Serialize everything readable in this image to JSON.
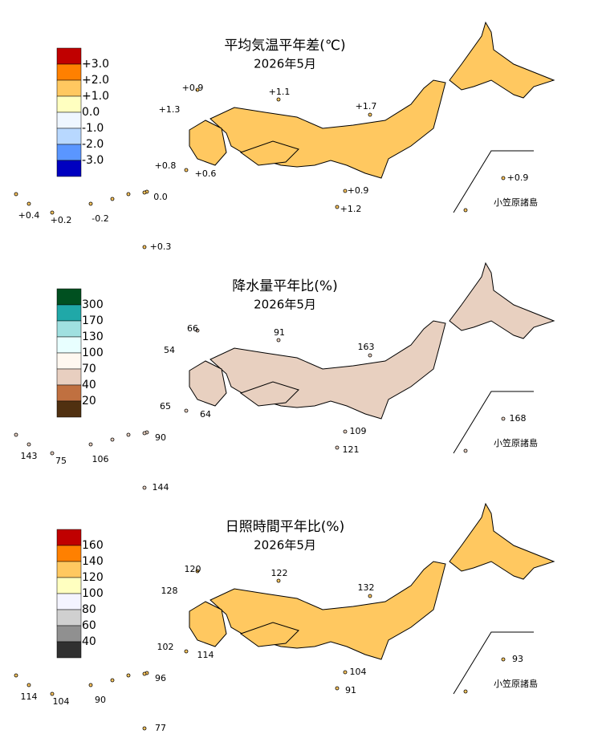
{
  "panels": [
    {
      "title": "平均気温平年差(℃)",
      "date": "2026年5月",
      "inset": "小笠原諸島",
      "legend_labels": [
        "+3.0",
        "+2.0",
        "+1.0",
        "0.0",
        "-1.0",
        "-2.0",
        "-3.0"
      ],
      "legend_colors": [
        "#c00000",
        "#ff8000",
        "#ffc860",
        "#ffffc0",
        "#eef6ff",
        "#b8d8ff",
        "#5a96ff",
        "#0000c0"
      ],
      "labels": [
        "+0.9",
        "+1.1",
        "+1.3",
        "+1.7",
        "+0.8",
        "+0.6",
        "+0.9",
        "+1.2",
        "+0.4",
        "+0.2",
        "-0.2",
        "0.0",
        "+0.3",
        "+0.9"
      ]
    },
    {
      "title": "降水量平年比(%)",
      "date": "2026年5月",
      "inset": "小笠原諸島",
      "legend_labels": [
        "300",
        "170",
        "130",
        "100",
        "70",
        "40",
        "20"
      ],
      "legend_colors": [
        "#005020",
        "#20a8a8",
        "#a0e0e0",
        "#e8ffff",
        "#fff8f0",
        "#e8cfc0",
        "#c07040",
        "#503010"
      ],
      "labels": [
        "66",
        "91",
        "54",
        "163",
        "65",
        "64",
        "109",
        "121",
        "143",
        "75",
        "106",
        "90",
        "144",
        "168"
      ]
    },
    {
      "title": "日照時間平年比(%)",
      "date": "2026年5月",
      "inset": "小笠原諸島",
      "legend_labels": [
        "160",
        "140",
        "120",
        "100",
        "80",
        "60",
        "40"
      ],
      "legend_colors": [
        "#c00000",
        "#ff8000",
        "#ffc860",
        "#ffffc0",
        "#f4f4ff",
        "#d0d0d0",
        "#909090",
        "#303030"
      ],
      "labels": [
        "120",
        "122",
        "128",
        "132",
        "102",
        "114",
        "104",
        "91",
        "114",
        "104",
        "90",
        "96",
        "77",
        "93"
      ]
    }
  ]
}
